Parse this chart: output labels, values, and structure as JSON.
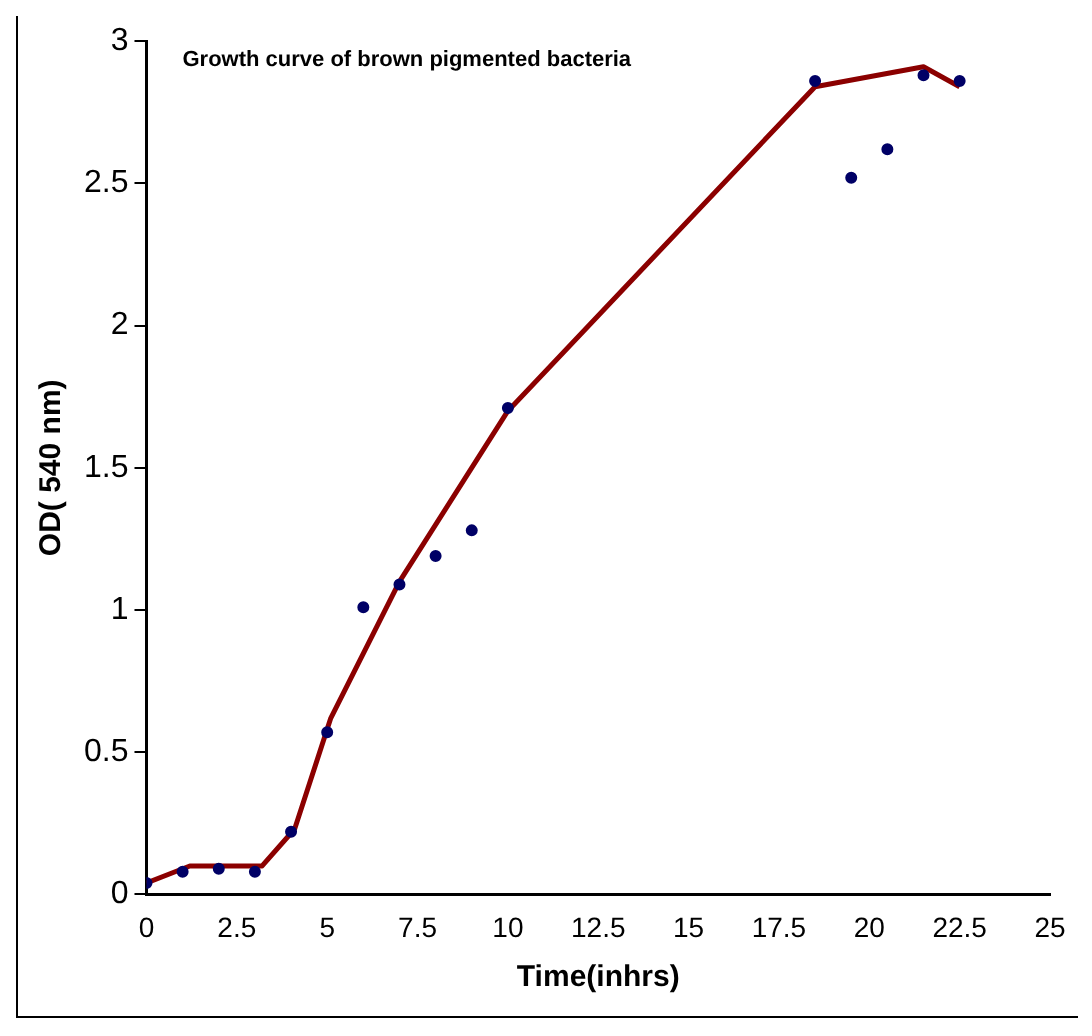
{
  "chart_data": {
    "type": "scatter",
    "title": "Growth curve of brown pigmented bacteria",
    "xlabel": "Time(inhrs)",
    "ylabel": "OD( 540 nm)",
    "xlim": [
      0,
      25
    ],
    "xticks": [
      0,
      2.5,
      5,
      7.5,
      10,
      12.5,
      15,
      17.5,
      20,
      22.5,
      25
    ],
    "ylim": [
      0,
      3
    ],
    "yticks": [
      0,
      0.5,
      1,
      1.5,
      2,
      2.5,
      3
    ],
    "grid": false,
    "series": [
      {
        "marker": "circle",
        "color": "#000066",
        "x": [
          0,
          1,
          2,
          3,
          4,
          5,
          6,
          7,
          8,
          9,
          10,
          18.5,
          19.5,
          20.5,
          21.5,
          22.5
        ],
        "values": [
          0.04,
          0.08,
          0.09,
          0.08,
          0.22,
          0.57,
          1.01,
          1.09,
          1.19,
          1.28,
          1.71,
          2.86,
          2.52,
          2.62,
          2.88,
          2.86
        ]
      },
      {
        "type": "line",
        "marker": "none",
        "color": "#8b0000",
        "x": [
          0,
          1.2,
          3.2,
          4.1,
          5.1,
          7,
          10,
          18.5,
          21.5,
          22.5
        ],
        "values": [
          0.04,
          0.1,
          0.1,
          0.23,
          0.62,
          1.1,
          1.7,
          2.84,
          2.91,
          2.84
        ]
      }
    ]
  }
}
